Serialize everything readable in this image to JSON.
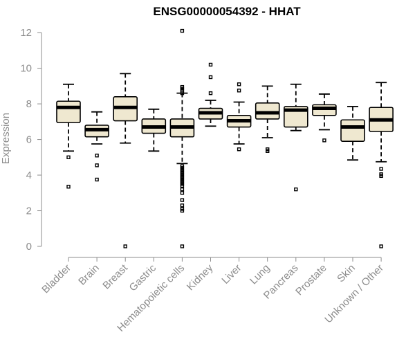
{
  "chart_data": {
    "type": "box",
    "title": "ENSG00000054392 - HHAT",
    "ylabel": "Expression",
    "ylim": [
      0,
      12.2
    ],
    "yticks": [
      0,
      2,
      4,
      6,
      8,
      10,
      12
    ],
    "box_fill": "#efe8d0",
    "categories": [
      "Bladder",
      "Brain",
      "Breast",
      "Gastric",
      "Hematopoietic cells",
      "Kidney",
      "Liver",
      "Lung",
      "Pancreas",
      "Prostate",
      "Skin",
      "Unknown / Other"
    ],
    "boxes": [
      {
        "label": "Bladder",
        "whisker_low": 5.35,
        "q1": 6.95,
        "median": 7.8,
        "q3": 8.15,
        "whisker_high": 9.1,
        "outliers": [
          5.0,
          3.35
        ]
      },
      {
        "label": "Brain",
        "whisker_low": 5.75,
        "q1": 6.15,
        "median": 6.55,
        "q3": 6.8,
        "whisker_high": 7.55,
        "outliers": [
          5.1,
          4.55,
          3.75
        ]
      },
      {
        "label": "Breast",
        "whisker_low": 5.8,
        "q1": 7.05,
        "median": 7.8,
        "q3": 8.4,
        "whisker_high": 9.7,
        "outliers": [
          0.0
        ]
      },
      {
        "label": "Gastric",
        "whisker_low": 5.35,
        "q1": 6.35,
        "median": 6.7,
        "q3": 7.15,
        "whisker_high": 7.7,
        "outliers": []
      },
      {
        "label": "Hematopoietic cells",
        "whisker_low": 4.65,
        "q1": 6.15,
        "median": 6.7,
        "q3": 7.15,
        "whisker_high": 8.6,
        "outliers": [
          12.1,
          8.95,
          8.85,
          8.75,
          8.6,
          4.5,
          4.4,
          4.3,
          4.2,
          4.1,
          4.0,
          3.9,
          3.8,
          3.7,
          3.6,
          3.5,
          3.4,
          3.2,
          3.0,
          2.6,
          2.3,
          2.1,
          2.0,
          0.0
        ]
      },
      {
        "label": "Kidney",
        "whisker_low": 6.75,
        "q1": 7.15,
        "median": 7.5,
        "q3": 7.75,
        "whisker_high": 8.2,
        "outliers": [
          10.2,
          9.5,
          8.6
        ]
      },
      {
        "label": "Liver",
        "whisker_low": 5.75,
        "q1": 6.7,
        "median": 7.05,
        "q3": 7.35,
        "whisker_high": 8.1,
        "outliers": [
          9.1,
          8.75,
          5.45
        ]
      },
      {
        "label": "Lung",
        "whisker_low": 6.1,
        "q1": 7.15,
        "median": 7.5,
        "q3": 8.05,
        "whisker_high": 9.0,
        "outliers": [
          5.45,
          5.35
        ]
      },
      {
        "label": "Pancreas",
        "whisker_low": 6.5,
        "q1": 6.7,
        "median": 7.65,
        "q3": 7.85,
        "whisker_high": 9.1,
        "outliers": [
          3.2
        ]
      },
      {
        "label": "Prostate",
        "whisker_low": 6.55,
        "q1": 7.35,
        "median": 7.75,
        "q3": 7.95,
        "whisker_high": 8.55,
        "outliers": [
          5.95
        ]
      },
      {
        "label": "Skin",
        "whisker_low": 4.85,
        "q1": 5.9,
        "median": 6.7,
        "q3": 7.1,
        "whisker_high": 7.85,
        "outliers": []
      },
      {
        "label": "Unknown / Other",
        "whisker_low": 4.75,
        "q1": 6.45,
        "median": 7.1,
        "q3": 7.8,
        "whisker_high": 9.2,
        "outliers": [
          4.35,
          4.05,
          3.95,
          0.0
        ]
      }
    ]
  }
}
